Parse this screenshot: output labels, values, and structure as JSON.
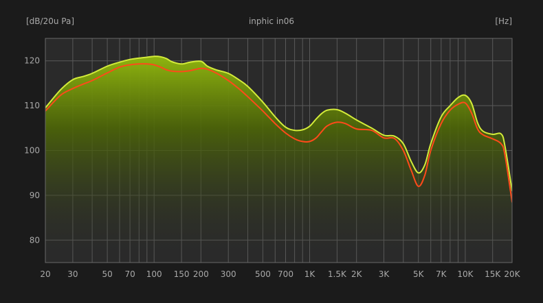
{
  "header": {
    "y_unit": "[dB/20u Pa]",
    "title": "inphic in06",
    "x_unit": "[Hz]"
  },
  "colors": {
    "background": "#1b1b1b",
    "plot_background": "#2a2a2a",
    "grid": "#5a5a5a",
    "text": "#a9a9a9",
    "series_1": "#d4ec3a",
    "series_2": "#ff4a1a",
    "fill_top": "#7fa60e"
  },
  "chart_data": {
    "type": "line",
    "title": "inphic in06",
    "xlabel": "[Hz]",
    "ylabel": "[dB/20u Pa]",
    "x_scale": "log",
    "xlim": [
      20,
      20000
    ],
    "ylim": [
      75,
      125
    ],
    "grid": true,
    "x_ticks": [
      {
        "value": 20,
        "label": "20"
      },
      {
        "value": 30,
        "label": "30"
      },
      {
        "value": 50,
        "label": "50"
      },
      {
        "value": 70,
        "label": "70"
      },
      {
        "value": 100,
        "label": "100"
      },
      {
        "value": 150,
        "label": "150"
      },
      {
        "value": 200,
        "label": "200"
      },
      {
        "value": 300,
        "label": "300"
      },
      {
        "value": 500,
        "label": "500"
      },
      {
        "value": 700,
        "label": "700"
      },
      {
        "value": 1000,
        "label": "1K"
      },
      {
        "value": 1500,
        "label": "1.5K"
      },
      {
        "value": 2000,
        "label": "2K"
      },
      {
        "value": 3000,
        "label": "3K"
      },
      {
        "value": 5000,
        "label": "5K"
      },
      {
        "value": 7000,
        "label": "7K"
      },
      {
        "value": 10000,
        "label": "10K"
      },
      {
        "value": 15000,
        "label": "15K"
      },
      {
        "value": 20000,
        "label": "20K"
      }
    ],
    "x_grid_extra": [
      40,
      60,
      80,
      90,
      400,
      600,
      800,
      900,
      4000,
      6000,
      8000,
      9000
    ],
    "y_ticks": [
      {
        "value": 80,
        "label": "80"
      },
      {
        "value": 90,
        "label": "90"
      },
      {
        "value": 100,
        "label": "100"
      },
      {
        "value": 110,
        "label": "110"
      },
      {
        "value": 120,
        "label": "120"
      }
    ],
    "series": [
      {
        "color": "#d4ec3a",
        "filled": true,
        "x": [
          20,
          25,
          30,
          35,
          40,
          50,
          60,
          70,
          80,
          90,
          100,
          110,
          120,
          130,
          150,
          170,
          200,
          220,
          250,
          300,
          350,
          400,
          500,
          600,
          700,
          800,
          900,
          1000,
          1100,
          1200,
          1300,
          1500,
          1700,
          2000,
          2500,
          3000,
          3500,
          4000,
          4500,
          5000,
          5500,
          6000,
          7000,
          8000,
          9000,
          10000,
          11000,
          12000,
          13000,
          15000,
          17000,
          18000,
          20000
        ],
        "y": [
          109.5,
          113.5,
          115.8,
          116.5,
          117.2,
          118.8,
          119.7,
          120.3,
          120.6,
          120.8,
          121.0,
          120.9,
          120.5,
          119.8,
          119.3,
          119.7,
          119.9,
          118.8,
          118.0,
          117.2,
          115.8,
          114.3,
          110.8,
          107.5,
          105.2,
          104.5,
          104.6,
          105.4,
          107.0,
          108.3,
          109.0,
          109.1,
          108.3,
          106.8,
          105.0,
          103.4,
          103.2,
          101.5,
          97.5,
          95.0,
          96.8,
          101.5,
          107.5,
          110.0,
          111.8,
          112.3,
          110.5,
          106.2,
          104.3,
          103.6,
          103.7,
          101.0,
          91.0
        ]
      },
      {
        "color": "#ff4a1a",
        "filled": false,
        "x": [
          20,
          25,
          30,
          35,
          40,
          50,
          60,
          70,
          80,
          90,
          100,
          110,
          120,
          130,
          150,
          170,
          200,
          220,
          250,
          300,
          350,
          400,
          500,
          600,
          700,
          800,
          900,
          1000,
          1100,
          1200,
          1300,
          1500,
          1700,
          2000,
          2500,
          3000,
          3500,
          4000,
          4500,
          5000,
          5500,
          6000,
          7000,
          8000,
          9000,
          10000,
          11000,
          12000,
          13000,
          15000,
          17000,
          18000,
          20000
        ],
        "y": [
          108.8,
          112.3,
          113.8,
          114.8,
          115.6,
          117.3,
          118.6,
          119.1,
          119.3,
          119.3,
          119.1,
          118.6,
          118.0,
          117.7,
          117.6,
          117.8,
          118.3,
          118.1,
          117.3,
          115.6,
          113.8,
          112.0,
          108.8,
          106.0,
          103.9,
          102.6,
          102.0,
          102.0,
          102.8,
          104.3,
          105.5,
          106.3,
          106.0,
          104.8,
          104.5,
          102.8,
          102.7,
          100.0,
          95.5,
          92.0,
          94.5,
          100.0,
          106.0,
          109.0,
          110.3,
          110.6,
          108.3,
          104.8,
          103.5,
          102.6,
          101.5,
          99.0,
          88.5
        ]
      }
    ]
  }
}
